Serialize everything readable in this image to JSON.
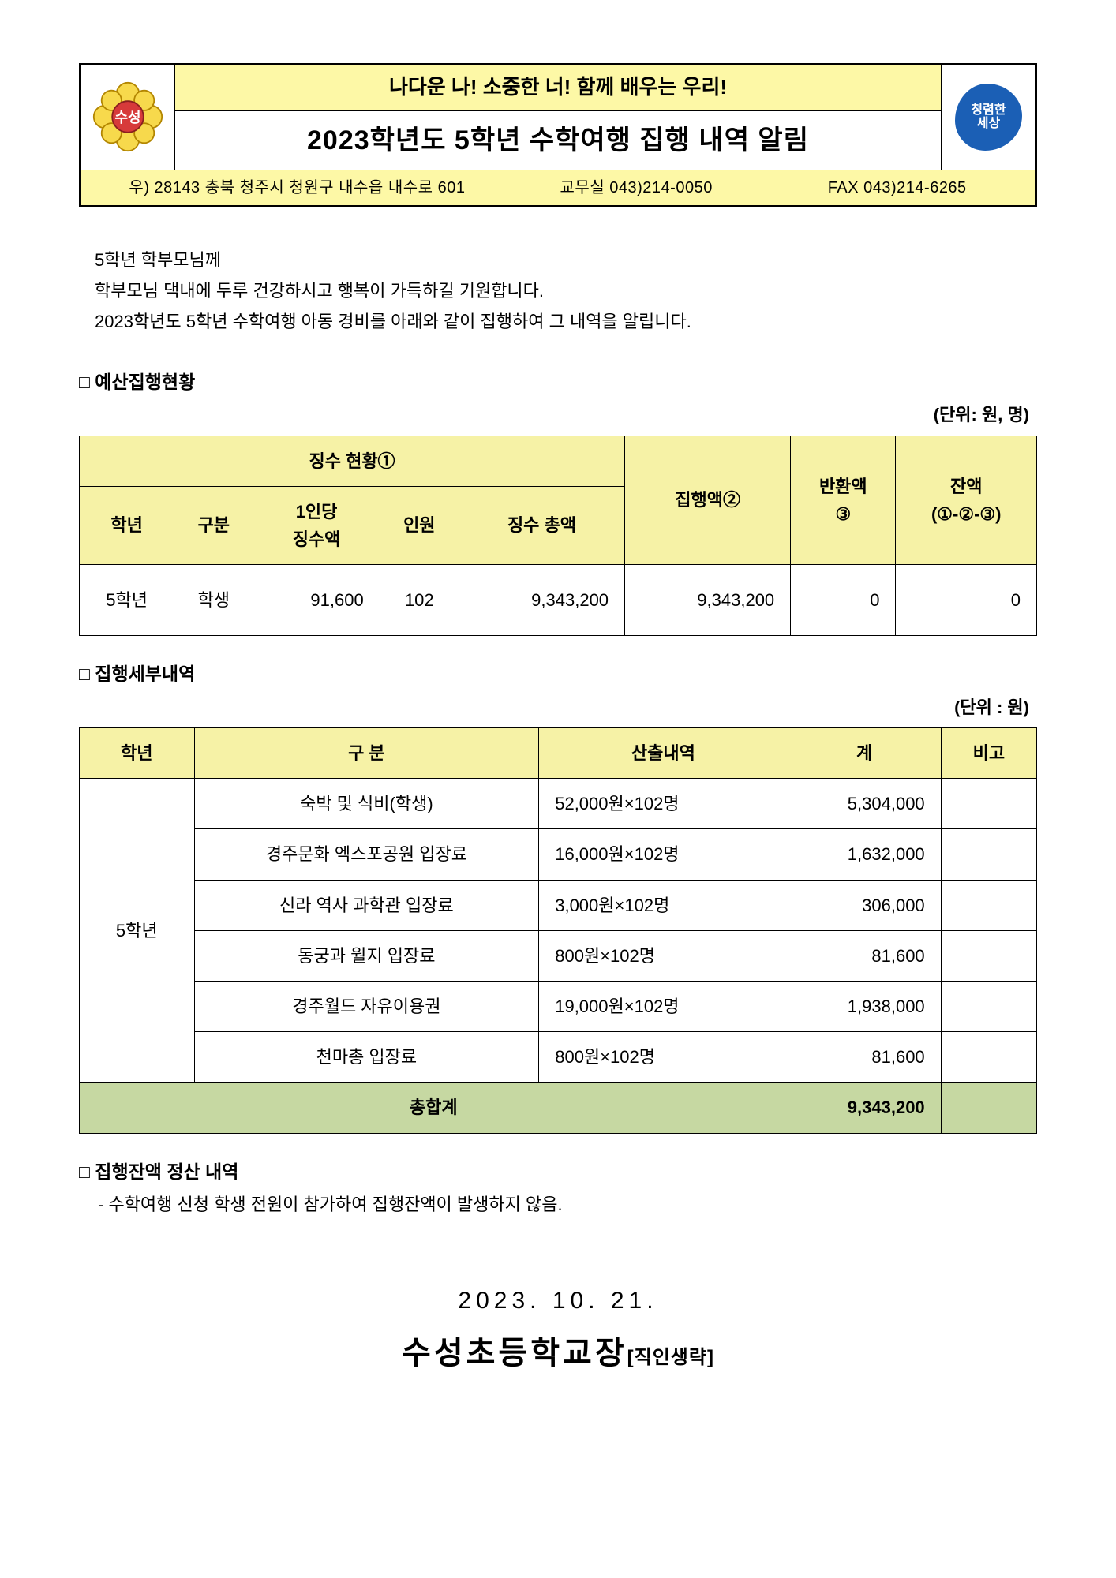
{
  "header": {
    "slogan": "나다운 나! 소중한 너! 함께 배우는 우리!",
    "title": "2023학년도 5학년 수학여행 집행 내역 알림",
    "left_badge_text": "수성",
    "right_badge_line1": "청렴한",
    "right_badge_line2": "세상",
    "address": "우) 28143  충북 청주시 청원구 내수읍 내수로 601",
    "office": "교무실 043)214-0050",
    "fax": "FAX 043)214-6265"
  },
  "intro": {
    "line1": "5학년 학부모님께",
    "line2": "학부모님 댁내에 두루 건강하시고 행복이 가득하길 기원합니다.",
    "line3": "2023학년도 5학년 수학여행 아동 경비를 아래와 같이 집행하여 그 내역을 알립니다."
  },
  "section1": {
    "title": "예산집행현황",
    "unit": "(단위: 원, 명)",
    "table": {
      "header_colors": {
        "bg": "#f6f2a6"
      },
      "header": {
        "collection": "징수 현황①",
        "grade": "학년",
        "category": "구분",
        "per_person": "1인당\n징수액",
        "count": "인원",
        "collection_total": "징수 총액",
        "executed": "집행액②",
        "refund": "반환액\n③",
        "balance": "잔액\n(①-②-③)"
      },
      "row": {
        "grade": "5학년",
        "category": "학생",
        "per_person": "91,600",
        "count": "102",
        "collection_total": "9,343,200",
        "executed": "9,343,200",
        "refund": "0",
        "balance": "0"
      }
    }
  },
  "section2": {
    "title": "집행세부내역",
    "unit": "(단위 : 원)",
    "table": {
      "header": {
        "grade": "학년",
        "category": "구 분",
        "calc": "산출내역",
        "sum": "계",
        "note": "비고"
      },
      "grade": "5학년",
      "rows": [
        {
          "category": "숙박 및 식비(학생)",
          "calc": "52,000원×102명",
          "sum": "5,304,000",
          "note": ""
        },
        {
          "category": "경주문화 엑스포공원 입장료",
          "calc": "16,000원×102명",
          "sum": "1,632,000",
          "note": ""
        },
        {
          "category": "신라 역사 과학관 입장료",
          "calc": "3,000원×102명",
          "sum": "306,000",
          "note": ""
        },
        {
          "category": "동궁과 월지 입장료",
          "calc": "800원×102명",
          "sum": "81,600",
          "note": ""
        },
        {
          "category": "경주월드 자유이용권",
          "calc": "19,000원×102명",
          "sum": "1,938,000",
          "note": ""
        },
        {
          "category": "천마총 입장료",
          "calc": "800원×102명",
          "sum": "81,600",
          "note": ""
        }
      ],
      "total_label": "총합계",
      "total_sum": "9,343,200",
      "total_row_bg": "#c6d8a2"
    }
  },
  "section3": {
    "title": "집행잔액 정산 내역",
    "note": "- 수학여행 신청 학생 전원이 참가하여 집행잔액이 발생하지 않음."
  },
  "signature": {
    "date": "2023.  10.  21.",
    "name": "수성초등학교장",
    "suffix": "[직인생략]"
  }
}
